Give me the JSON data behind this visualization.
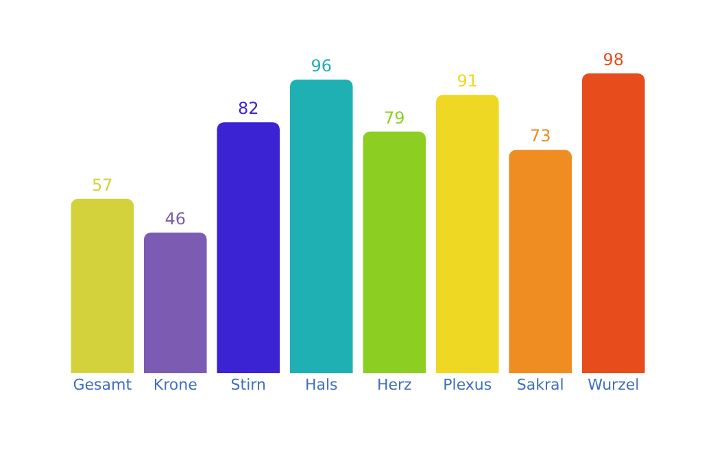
{
  "chart_data": {
    "type": "bar",
    "categories": [
      "Gesamt",
      "Krone",
      "Stirn",
      "Hals",
      "Herz",
      "Plexus",
      "Sakral",
      "Wurzel"
    ],
    "values": [
      57,
      46,
      82,
      96,
      79,
      91,
      73,
      98
    ],
    "colors": [
      "#d4d23c",
      "#7b5cb2",
      "#3b22d2",
      "#1fb0b4",
      "#8ccf22",
      "#efd823",
      "#ef8c22",
      "#e64c1c"
    ],
    "data_labels": true
  }
}
